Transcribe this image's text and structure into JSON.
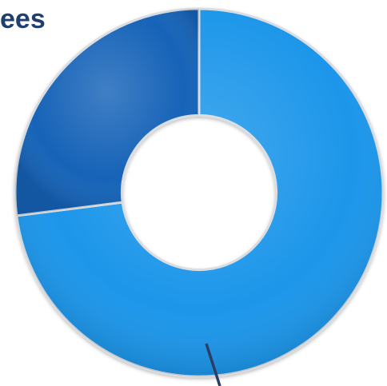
{
  "chart_data": {
    "type": "pie",
    "title": "ees",
    "categories": [
      "",
      ""
    ],
    "values": [
      73,
      27
    ],
    "colors": [
      "#1e96ea",
      "#1463b8"
    ],
    "start_angle_deg": 0,
    "inner_radius_ratio": 0.42,
    "legend": "none",
    "leader_line_color": "#2c3e66"
  }
}
